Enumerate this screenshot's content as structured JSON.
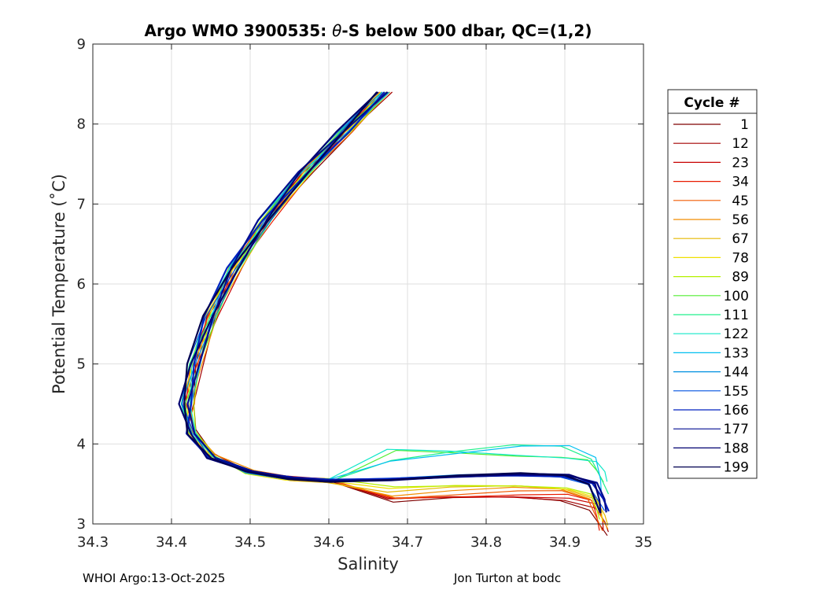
{
  "chart_data": {
    "type": "line",
    "title": "Argo WMO 3900535: θ-S below 500 dbar,  QC=(1,2)",
    "title_parts": {
      "prefix": "Argo WMO 3900535: ",
      "theta": "θ",
      "suffix": "-S below 500 dbar,  QC=(1,2)"
    },
    "xlabel": "Salinity",
    "ylabel": "Potential Temperature (˚C)",
    "xlim": [
      34.3,
      35
    ],
    "ylim": [
      3,
      9
    ],
    "xticks": [
      "34.3",
      "34.4",
      "34.5",
      "34.6",
      "34.7",
      "34.8",
      "34.9",
      "35"
    ],
    "yticks": [
      "3",
      "4",
      "5",
      "6",
      "7",
      "8",
      "9"
    ],
    "grid": true,
    "legend": {
      "title": "Cycle #",
      "placement": "outside-right"
    },
    "series": [
      {
        "name": "1",
        "color": "#7f0000"
      },
      {
        "name": "12",
        "color": "#a30000"
      },
      {
        "name": "23",
        "color": "#c80000"
      },
      {
        "name": "34",
        "color": "#e81a00"
      },
      {
        "name": "45",
        "color": "#f05a00"
      },
      {
        "name": "56",
        "color": "#f28e00"
      },
      {
        "name": "67",
        "color": "#e6b800"
      },
      {
        "name": "78",
        "color": "#f0e000"
      },
      {
        "name": "89",
        "color": "#b4f000"
      },
      {
        "name": "100",
        "color": "#50ee30"
      },
      {
        "name": "111",
        "color": "#20f08c"
      },
      {
        "name": "122",
        "color": "#10e8c8"
      },
      {
        "name": "133",
        "color": "#00c0f0"
      },
      {
        "name": "144",
        "color": "#0090e0"
      },
      {
        "name": "155",
        "color": "#0050e0"
      },
      {
        "name": "166",
        "color": "#0020c0"
      },
      {
        "name": "177",
        "color": "#000c90"
      },
      {
        "name": "188",
        "color": "#000070"
      },
      {
        "name": "199",
        "color": "#000050"
      }
    ],
    "profile_shape": {
      "s": [
        34.67,
        34.62,
        34.57,
        34.52,
        34.48,
        34.45,
        34.43,
        34.42,
        34.425,
        34.45,
        34.5,
        34.55,
        34.6,
        34.68,
        34.76,
        34.84,
        34.9,
        34.935,
        34.945,
        34.95
      ],
      "t": [
        8.4,
        7.9,
        7.4,
        6.8,
        6.2,
        5.6,
        5.0,
        4.5,
        4.15,
        3.85,
        3.65,
        3.57,
        3.54,
        3.56,
        3.6,
        3.62,
        3.6,
        3.5,
        3.3,
        3.15
      ]
    }
  },
  "footer": {
    "left": "WHOI Argo:13-Oct-2025",
    "right": "Jon Turton at bodc"
  }
}
